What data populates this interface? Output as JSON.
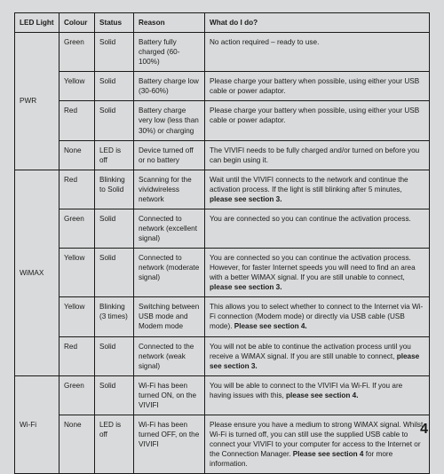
{
  "headers": {
    "led": "LED Light",
    "colour": "Colour",
    "status": "Status",
    "reason": "Reason",
    "action": "What do I do?"
  },
  "pwr": {
    "label": "PWR",
    "rows": [
      {
        "colour": "Green",
        "status": "Solid",
        "reason": "Battery fully charged (60-100%)",
        "action": "No action required – ready to use."
      },
      {
        "colour": "Yellow",
        "status": "Solid",
        "reason": "Battery charge low (30-60%)",
        "action": "Please charge your battery when possible, using either your USB cable or power adaptor."
      },
      {
        "colour": "Red",
        "status": "Solid",
        "reason": "Battery charge very low (less than 30%) or charging",
        "action": "Please charge your battery when possible, using either your USB cable or power adaptor."
      },
      {
        "colour": "None",
        "status": "LED is off",
        "reason": "Device turned off or no battery",
        "action": "The VIVIFI needs to be fully charged and/or turned on before you can begin using it."
      }
    ]
  },
  "wimax": {
    "label": "WiMAX",
    "rows": [
      {
        "colour": "Red",
        "status": "Blinking to Solid",
        "reason": "Scanning for the vividwireless network",
        "action_pre": "Wait until the VIVIFI connects to the network and continue the activation process. If the light is still blinking after 5 minutes, ",
        "action_bold": "please see section 3.",
        "action_post": ""
      },
      {
        "colour": "Green",
        "status": "Solid",
        "reason": "Connected to network (excellent signal)",
        "action_pre": "You are connected so you can continue the activation process.",
        "action_bold": "",
        "action_post": ""
      },
      {
        "colour": "Yellow",
        "status": "Solid",
        "reason": "Connected to network (moderate signal)",
        "action_pre": "You are connected so you can continue the activation process. However, for faster Internet speeds you will need to find an area with a better WiMAX signal. If you are still unable to connect, ",
        "action_bold": "please see section 3.",
        "action_post": ""
      },
      {
        "colour": "Yellow",
        "status": "Blinking (3 times)",
        "reason": "Switching between USB mode and Modem mode",
        "action_pre": "This allows you to select whether to connect to the Internet via Wi-Fi connection (Modem mode) or directly via USB cable (USB mode). ",
        "action_bold": "Please see section 4.",
        "action_post": ""
      },
      {
        "colour": "Red",
        "status": "Solid",
        "reason": "Connected to the network (weak signal)",
        "action_pre": "You will not be able to continue the activation process until you receive a WiMAX signal. If you are still unable to connect, ",
        "action_bold": "please see section 3.",
        "action_post": ""
      }
    ]
  },
  "wifi": {
    "label": "Wi-Fi",
    "rows": [
      {
        "colour": "Green",
        "status": "Solid",
        "reason": "Wi-Fi has been turned ON, on the VIVIFI",
        "action_pre": "You will be able to connect to the VIVIFI via Wi-Fi. If you are having issues with this, ",
        "action_bold": "please see section 4.",
        "action_post": ""
      },
      {
        "colour": "None",
        "status": "LED is off",
        "reason": "Wi-Fi has been turned OFF, on the VIVIFI",
        "action_pre": "Please ensure you have a medium to strong WiMAX signal. Whilst Wi-Fi is turned off, you can still use the supplied USB cable to connect your VIVIFI to your computer for access to the Internet or the Connection Manager. ",
        "action_bold": "Please see section 4",
        "action_post": " for more information."
      }
    ]
  },
  "pageNumber": "4"
}
